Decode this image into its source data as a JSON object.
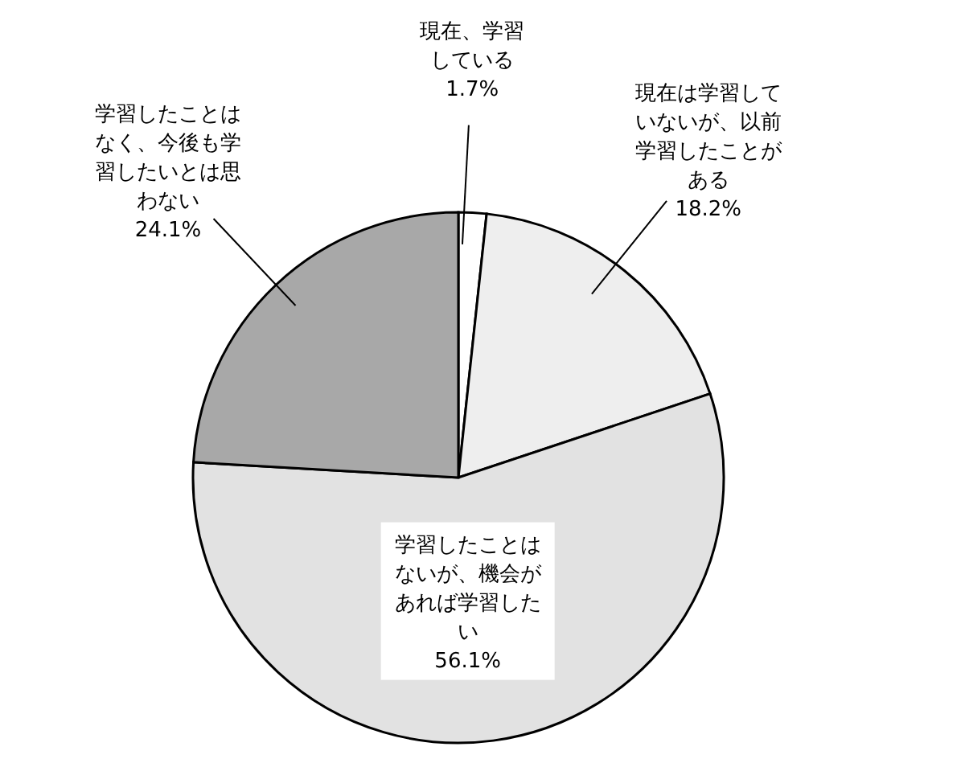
{
  "chart_data": {
    "type": "pie",
    "categories": [
      "現在、学習している",
      "現在は学習していないが、以前学習したことがある",
      "学習したことはないが、機会があれば学習したい",
      "学習したことはなく、今後も学習したいとは思わない"
    ],
    "values": [
      1.7,
      18.2,
      56.1,
      24.1
    ],
    "value_labels": [
      "1.7%",
      "18.2%",
      "56.1%",
      "24.1%"
    ],
    "colors": [
      "#ffffff",
      "#eeeeee",
      "#e2e2e2",
      "#a8a8a8"
    ],
    "legend": false
  }
}
